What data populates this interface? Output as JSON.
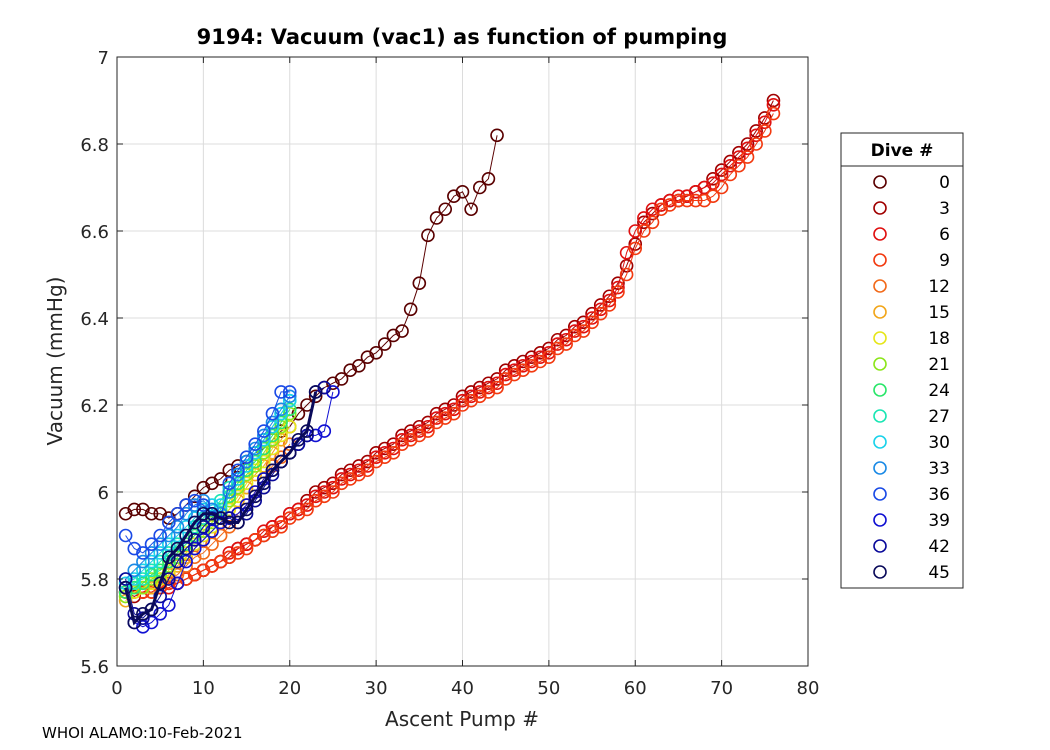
{
  "chart_data": {
    "type": "scatter",
    "title": "9194: Vacuum (vac1) as function of pumping",
    "xlabel": "Ascent Pump #",
    "ylabel": "Vacuum (mmHg)",
    "xlim": [
      0,
      80
    ],
    "ylim": [
      5.6,
      7.0
    ],
    "xticks": [
      0,
      10,
      20,
      30,
      40,
      50,
      60,
      70,
      80
    ],
    "yticks": [
      5.6,
      5.8,
      6.0,
      6.2,
      6.4,
      6.6,
      6.8,
      7.0
    ],
    "xtick_labels": [
      "0",
      "10",
      "20",
      "30",
      "40",
      "50",
      "60",
      "70",
      "80"
    ],
    "ytick_labels": [
      "5.6",
      "5.8",
      "6",
      "6.2",
      "6.4",
      "6.6",
      "6.8",
      "7"
    ],
    "grid": true,
    "legend_title": "Dive #",
    "legend_position": "outside-right",
    "series": [
      {
        "name": "0",
        "color": "#5a0000",
        "x": [
          1,
          2,
          3,
          4,
          5,
          6,
          7,
          8,
          9,
          10,
          11,
          12,
          13,
          14,
          15,
          16,
          17,
          18,
          19,
          20,
          21,
          22,
          23,
          24,
          25,
          26,
          27,
          28,
          29,
          30,
          31,
          32,
          33,
          34,
          35,
          36,
          37,
          38,
          39,
          40,
          41,
          42,
          43,
          44
        ],
        "y": [
          5.95,
          5.96,
          5.96,
          5.95,
          5.95,
          5.94,
          5.95,
          5.97,
          5.99,
          6.01,
          6.02,
          6.03,
          6.05,
          6.06,
          6.07,
          6.09,
          6.1,
          6.12,
          6.14,
          6.15,
          6.18,
          6.2,
          6.22,
          6.24,
          6.25,
          6.26,
          6.28,
          6.29,
          6.31,
          6.32,
          6.34,
          6.36,
          6.37,
          6.42,
          6.48,
          6.59,
          6.63,
          6.65,
          6.68,
          6.69,
          6.65,
          6.7,
          6.72,
          6.82
        ]
      },
      {
        "name": "3",
        "color": "#a00000",
        "x": [
          1,
          2,
          3,
          4,
          5,
          6,
          7,
          8,
          9,
          10,
          11,
          12,
          13,
          14,
          15,
          16,
          17,
          18,
          19,
          20,
          21,
          22,
          23,
          24,
          25,
          26,
          27,
          28,
          29,
          30,
          31,
          32,
          33,
          34,
          35,
          36,
          37,
          38,
          39,
          40,
          41,
          42,
          43,
          44,
          45,
          46,
          47,
          48,
          49,
          50,
          51,
          52,
          53,
          54,
          55,
          56,
          57,
          58,
          59,
          60,
          61,
          62,
          63,
          64,
          65,
          66,
          67,
          68,
          69,
          70,
          71,
          72,
          73,
          74,
          75,
          76
        ],
        "y": [
          5.77,
          5.76,
          5.77,
          5.77,
          5.78,
          5.79,
          5.79,
          5.8,
          5.81,
          5.82,
          5.83,
          5.84,
          5.85,
          5.87,
          5.88,
          5.89,
          5.9,
          5.92,
          5.93,
          5.95,
          5.96,
          5.98,
          6.0,
          6.01,
          6.02,
          6.04,
          6.05,
          6.06,
          6.07,
          6.09,
          6.1,
          6.11,
          6.13,
          6.14,
          6.15,
          6.16,
          6.18,
          6.19,
          6.2,
          6.22,
          6.23,
          6.24,
          6.25,
          6.26,
          6.28,
          6.29,
          6.3,
          6.31,
          6.32,
          6.33,
          6.35,
          6.36,
          6.38,
          6.39,
          6.41,
          6.43,
          6.45,
          6.48,
          6.52,
          6.57,
          6.62,
          6.64,
          6.66,
          6.67,
          6.67,
          6.68,
          6.69,
          6.7,
          6.72,
          6.74,
          6.76,
          6.78,
          6.8,
          6.83,
          6.86,
          6.9
        ]
      },
      {
        "name": "6",
        "color": "#e01010",
        "x": [
          1,
          2,
          3,
          4,
          5,
          6,
          7,
          8,
          9,
          10,
          11,
          12,
          13,
          14,
          15,
          16,
          17,
          18,
          19,
          20,
          21,
          22,
          23,
          24,
          25,
          26,
          27,
          28,
          29,
          30,
          31,
          32,
          33,
          34,
          35,
          36,
          37,
          38,
          39,
          40,
          41,
          42,
          43,
          44,
          45,
          46,
          47,
          48,
          49,
          50,
          51,
          52,
          53,
          54,
          55,
          56,
          57,
          58,
          59,
          60,
          61,
          62,
          63,
          64,
          65,
          66,
          67,
          68,
          69,
          70,
          71,
          72,
          73,
          74,
          75,
          76
        ],
        "y": [
          5.78,
          5.77,
          5.77,
          5.78,
          5.78,
          5.78,
          5.79,
          5.8,
          5.81,
          5.82,
          5.83,
          5.84,
          5.86,
          5.87,
          5.88,
          5.89,
          5.91,
          5.92,
          5.93,
          5.95,
          5.96,
          5.97,
          5.99,
          6.0,
          6.01,
          6.03,
          6.04,
          6.05,
          6.06,
          6.08,
          6.09,
          6.1,
          6.12,
          6.13,
          6.14,
          6.15,
          6.17,
          6.18,
          6.19,
          6.21,
          6.22,
          6.23,
          6.24,
          6.25,
          6.27,
          6.28,
          6.29,
          6.3,
          6.31,
          6.32,
          6.34,
          6.35,
          6.37,
          6.38,
          6.4,
          6.42,
          6.44,
          6.47,
          6.55,
          6.6,
          6.63,
          6.65,
          6.66,
          6.67,
          6.68,
          6.68,
          6.69,
          6.7,
          6.71,
          6.73,
          6.75,
          6.77,
          6.79,
          6.82,
          6.85,
          6.89
        ]
      },
      {
        "name": "9",
        "color": "#f23a10",
        "x": [
          1,
          2,
          3,
          4,
          5,
          6,
          7,
          8,
          9,
          10,
          11,
          12,
          13,
          14,
          15,
          16,
          17,
          18,
          19,
          20,
          21,
          22,
          23,
          24,
          25,
          26,
          27,
          28,
          29,
          30,
          31,
          32,
          33,
          34,
          35,
          36,
          37,
          38,
          39,
          40,
          41,
          42,
          43,
          44,
          45,
          46,
          47,
          48,
          49,
          50,
          51,
          52,
          53,
          54,
          55,
          56,
          57,
          58,
          59,
          60,
          61,
          62,
          63,
          64,
          65,
          66,
          67,
          68,
          69,
          70,
          71,
          72,
          73,
          74,
          75,
          76
        ],
        "y": [
          5.77,
          5.77,
          5.77,
          5.77,
          5.78,
          5.79,
          5.79,
          5.8,
          5.81,
          5.82,
          5.83,
          5.84,
          5.85,
          5.86,
          5.87,
          5.89,
          5.9,
          5.91,
          5.92,
          5.94,
          5.95,
          5.96,
          5.98,
          5.99,
          6.0,
          6.02,
          6.03,
          6.04,
          6.05,
          6.07,
          6.08,
          6.09,
          6.11,
          6.12,
          6.13,
          6.14,
          6.16,
          6.17,
          6.18,
          6.2,
          6.21,
          6.22,
          6.23,
          6.24,
          6.26,
          6.27,
          6.28,
          6.29,
          6.3,
          6.31,
          6.33,
          6.34,
          6.36,
          6.37,
          6.39,
          6.41,
          6.43,
          6.46,
          6.5,
          6.56,
          6.6,
          6.62,
          6.65,
          6.66,
          6.67,
          6.67,
          6.67,
          6.67,
          6.68,
          6.7,
          6.73,
          6.75,
          6.77,
          6.8,
          6.83,
          6.87
        ]
      },
      {
        "name": "12",
        "color": "#f26a1a",
        "x": [
          1,
          2,
          3,
          4,
          5,
          6,
          7,
          8,
          9,
          10,
          11,
          12,
          13,
          14,
          15,
          16,
          17,
          18,
          19,
          20
        ],
        "y": [
          5.77,
          5.77,
          5.78,
          5.78,
          5.79,
          5.8,
          5.81,
          5.83,
          5.85,
          5.86,
          5.88,
          5.9,
          5.92,
          5.95,
          5.97,
          6.0,
          6.03,
          6.06,
          6.08,
          6.11
        ]
      },
      {
        "name": "15",
        "color": "#f2a61a",
        "x": [
          1,
          2,
          3,
          4,
          5,
          6,
          7,
          8,
          9,
          10,
          11,
          12,
          13,
          14,
          15,
          16,
          17,
          18,
          19,
          20
        ],
        "y": [
          5.75,
          5.77,
          5.78,
          5.78,
          5.8,
          5.81,
          5.83,
          5.85,
          5.87,
          5.89,
          5.91,
          5.93,
          5.96,
          5.98,
          6.01,
          6.04,
          6.06,
          6.09,
          6.12,
          6.15
        ]
      },
      {
        "name": "18",
        "color": "#e6e61a",
        "x": [
          1,
          2,
          3,
          4,
          5,
          6,
          7,
          8,
          9,
          10,
          11,
          12,
          13,
          14,
          15,
          16,
          17,
          18,
          19,
          20
        ],
        "y": [
          5.76,
          5.77,
          5.78,
          5.79,
          5.8,
          5.82,
          5.84,
          5.86,
          5.88,
          5.9,
          5.92,
          5.94,
          5.96,
          5.99,
          6.02,
          6.05,
          6.07,
          6.1,
          6.13,
          6.15
        ]
      },
      {
        "name": "21",
        "color": "#8ce61a",
        "x": [
          1,
          2,
          3,
          4,
          5,
          6,
          7,
          8,
          9,
          10,
          11,
          12,
          13,
          14,
          15,
          16,
          17,
          18,
          19,
          20
        ],
        "y": [
          5.76,
          5.78,
          5.78,
          5.8,
          5.81,
          5.83,
          5.85,
          5.87,
          5.89,
          5.91,
          5.93,
          5.95,
          5.98,
          6.01,
          6.04,
          6.06,
          6.09,
          6.12,
          6.15,
          6.18
        ]
      },
      {
        "name": "24",
        "color": "#2ae66a",
        "x": [
          1,
          2,
          3,
          4,
          5,
          6,
          7,
          8,
          9,
          10,
          11,
          12,
          13,
          14,
          15,
          16,
          17,
          18,
          19,
          20
        ],
        "y": [
          5.77,
          5.78,
          5.79,
          5.81,
          5.82,
          5.84,
          5.86,
          5.88,
          5.9,
          5.92,
          5.94,
          5.96,
          5.99,
          6.02,
          6.05,
          6.07,
          6.1,
          6.13,
          6.16,
          6.19
        ]
      },
      {
        "name": "27",
        "color": "#1ae6b4",
        "x": [
          1,
          2,
          3,
          4,
          5,
          6,
          7,
          8,
          9,
          10,
          11,
          12,
          13,
          14,
          15,
          16,
          17,
          18,
          19,
          20
        ],
        "y": [
          5.78,
          5.79,
          5.8,
          5.82,
          5.84,
          5.86,
          5.88,
          5.9,
          5.92,
          5.94,
          5.96,
          5.98,
          6.01,
          6.04,
          6.07,
          6.09,
          6.12,
          6.15,
          6.18,
          6.21
        ]
      },
      {
        "name": "30",
        "color": "#1ad2ea",
        "x": [
          1,
          2,
          3,
          4,
          5,
          6,
          7,
          8,
          9,
          10,
          11,
          12,
          13,
          14,
          15,
          16,
          17,
          18,
          19,
          20
        ],
        "y": [
          5.79,
          5.8,
          5.82,
          5.84,
          5.86,
          5.88,
          5.9,
          5.92,
          5.94,
          5.96,
          5.97,
          5.97,
          6.0,
          6.03,
          6.06,
          6.09,
          6.12,
          6.15,
          6.18,
          6.21
        ]
      },
      {
        "name": "33",
        "color": "#1a8ae6",
        "x": [
          1,
          2,
          3,
          4,
          5,
          6,
          7,
          8,
          9,
          10,
          11,
          12,
          13,
          14,
          15,
          16,
          17,
          18,
          19,
          20
        ],
        "y": [
          5.8,
          5.82,
          5.84,
          5.86,
          5.88,
          5.9,
          5.92,
          5.95,
          5.97,
          5.98,
          5.96,
          5.95,
          6.0,
          6.04,
          6.07,
          6.1,
          6.13,
          6.16,
          6.19,
          6.22
        ]
      },
      {
        "name": "36",
        "color": "#1a4ae6",
        "x": [
          1,
          2,
          3,
          4,
          5,
          6,
          7,
          8,
          9,
          10,
          11,
          12,
          13,
          14,
          15,
          16,
          17,
          18,
          19,
          20
        ],
        "y": [
          5.9,
          5.87,
          5.86,
          5.88,
          5.9,
          5.93,
          5.95,
          5.97,
          5.98,
          5.97,
          5.95,
          5.94,
          6.02,
          6.05,
          6.08,
          6.11,
          6.14,
          6.18,
          6.23,
          6.23
        ]
      },
      {
        "name": "39",
        "color": "#1010d2",
        "x": [
          1,
          2,
          3,
          4,
          5,
          6,
          7,
          8,
          9,
          10,
          11,
          12,
          13,
          14,
          15,
          16,
          17,
          18,
          19,
          20,
          21,
          22,
          23,
          24,
          25
        ],
        "y": [
          5.78,
          5.7,
          5.69,
          5.7,
          5.72,
          5.74,
          5.79,
          5.84,
          5.87,
          5.89,
          5.91,
          5.93,
          5.94,
          5.95,
          5.97,
          6.0,
          6.03,
          6.05,
          6.07,
          6.09,
          6.11,
          6.13,
          6.13,
          6.14,
          6.23
        ]
      },
      {
        "name": "42",
        "color": "#0a0a9a",
        "x": [
          1,
          2,
          3,
          4,
          5,
          6,
          7,
          8,
          9,
          10,
          11,
          12,
          13,
          14,
          15,
          16,
          17,
          18,
          19,
          20,
          21,
          22,
          23,
          24
        ],
        "y": [
          5.8,
          5.72,
          5.71,
          5.73,
          5.76,
          5.8,
          5.84,
          5.87,
          5.89,
          5.92,
          5.94,
          5.94,
          5.94,
          5.93,
          5.95,
          5.98,
          6.01,
          6.04,
          6.07,
          6.09,
          6.11,
          6.13,
          6.23,
          6.24
        ]
      },
      {
        "name": "45",
        "color": "#0a0a5a",
        "x": [
          1,
          2,
          3,
          4,
          5,
          6,
          7,
          8,
          9,
          10,
          11,
          12,
          13,
          14,
          15,
          16,
          17,
          18,
          19,
          20,
          21,
          22,
          23
        ],
        "y": [
          5.78,
          5.7,
          5.72,
          5.73,
          5.79,
          5.85,
          5.87,
          5.9,
          5.93,
          5.95,
          5.95,
          5.94,
          5.93,
          5.93,
          5.96,
          5.99,
          6.02,
          6.05,
          6.07,
          6.09,
          6.12,
          6.14,
          6.23
        ]
      }
    ]
  },
  "footer": {
    "text": "WHOI ALAMO:10-Feb-2021"
  }
}
